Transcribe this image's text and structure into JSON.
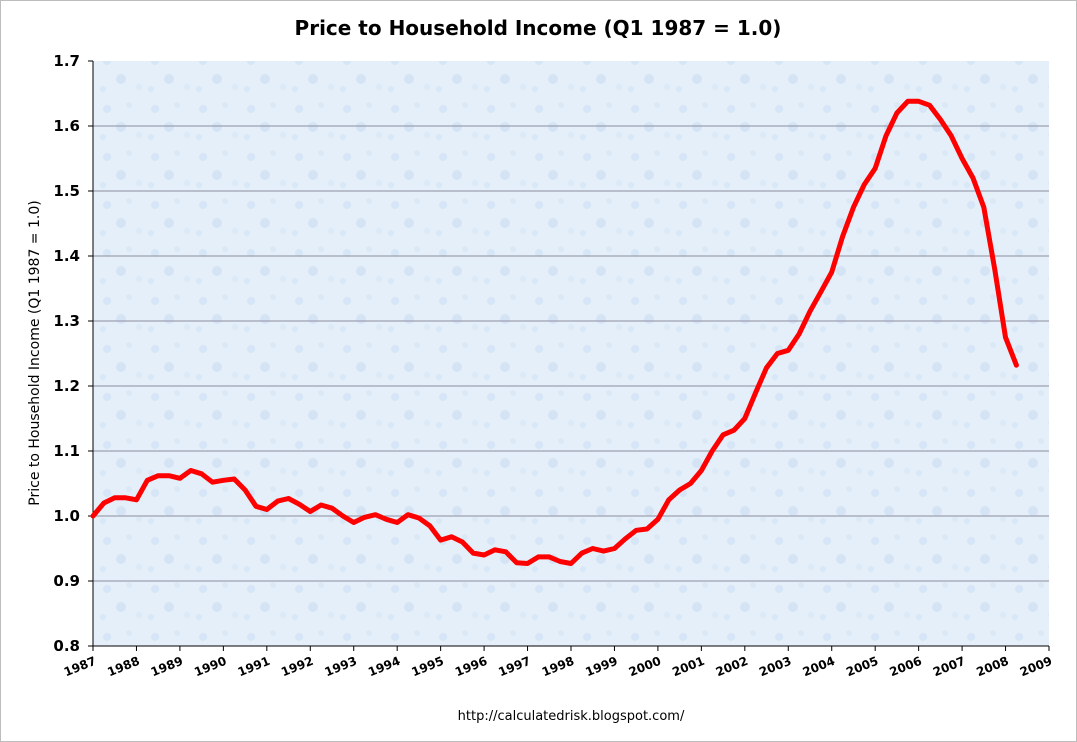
{
  "chart_data": {
    "type": "line",
    "title": "Price to Household Income (Q1 1987 = 1.0)",
    "ylabel": "Price to Household Income (Q1 1987 = 1.0)",
    "xlabel": "",
    "source": "http://calculatedrisk.blogspot.com/",
    "ylim": [
      0.8,
      1.7
    ],
    "xlim": [
      1987,
      2009
    ],
    "yticks": [
      "0.8",
      "0.9",
      "1.0",
      "1.1",
      "1.2",
      "1.3",
      "1.4",
      "1.5",
      "1.6",
      "1.7"
    ],
    "xticks": [
      "1987",
      "1988",
      "1989",
      "1990",
      "1991",
      "1992",
      "1993",
      "1994",
      "1995",
      "1996",
      "1997",
      "1998",
      "1999",
      "2000",
      "2001",
      "2002",
      "2003",
      "2004",
      "2005",
      "2006",
      "2007",
      "2008",
      "2009"
    ],
    "grid": true,
    "colors": {
      "line": "#ff0000",
      "plot_bg": "#e4effa",
      "grid": "#8e8e9e"
    },
    "series": [
      {
        "x": [
          1987.0,
          1987.25,
          1987.5,
          1987.75,
          1988.0,
          1988.25,
          1988.5,
          1988.75,
          1989.0,
          1989.25,
          1989.5,
          1989.75,
          1990.0,
          1990.25,
          1990.5,
          1990.75,
          1991.0,
          1991.25,
          1991.5,
          1991.75,
          1992.0,
          1992.25,
          1992.5,
          1992.75,
          1993.0,
          1993.25,
          1993.5,
          1993.75,
          1994.0,
          1994.25,
          1994.5,
          1994.75,
          1995.0,
          1995.25,
          1995.5,
          1995.75,
          1996.0,
          1996.25,
          1996.5,
          1996.75,
          1997.0,
          1997.25,
          1997.5,
          1997.75,
          1998.0,
          1998.25,
          1998.5,
          1998.75,
          1999.0,
          1999.25,
          1999.5,
          1999.75,
          2000.0,
          2000.25,
          2000.5,
          2000.75,
          2001.0,
          2001.25,
          2001.5,
          2001.75,
          2002.0,
          2002.25,
          2002.5,
          2002.75,
          2003.0,
          2003.25,
          2003.5,
          2003.75,
          2004.0,
          2004.25,
          2004.5,
          2004.75,
          2005.0,
          2005.25,
          2005.5,
          2005.75,
          2006.0,
          2006.25,
          2006.5,
          2006.75,
          2007.0,
          2007.25,
          2007.5,
          2007.75,
          2008.0,
          2008.25
        ],
        "values": [
          1.0,
          1.02,
          1.028,
          1.028,
          1.025,
          1.055,
          1.062,
          1.062,
          1.058,
          1.07,
          1.065,
          1.052,
          1.055,
          1.057,
          1.04,
          1.015,
          1.01,
          1.023,
          1.027,
          1.018,
          1.007,
          1.017,
          1.012,
          1.0,
          0.99,
          0.998,
          1.002,
          0.995,
          0.99,
          1.002,
          0.997,
          0.985,
          0.963,
          0.968,
          0.96,
          0.943,
          0.94,
          0.948,
          0.945,
          0.928,
          0.927,
          0.937,
          0.937,
          0.93,
          0.927,
          0.943,
          0.95,
          0.946,
          0.95,
          0.965,
          0.978,
          0.98,
          0.995,
          1.025,
          1.04,
          1.05,
          1.07,
          1.1,
          1.125,
          1.132,
          1.15,
          1.19,
          1.228,
          1.25,
          1.255,
          1.28,
          1.315,
          1.345,
          1.375,
          1.43,
          1.475,
          1.51,
          1.535,
          1.585,
          1.62,
          1.638,
          1.638,
          1.632,
          1.61,
          1.585,
          1.55,
          1.52,
          1.475,
          1.38,
          1.275,
          1.232
        ]
      }
    ]
  }
}
